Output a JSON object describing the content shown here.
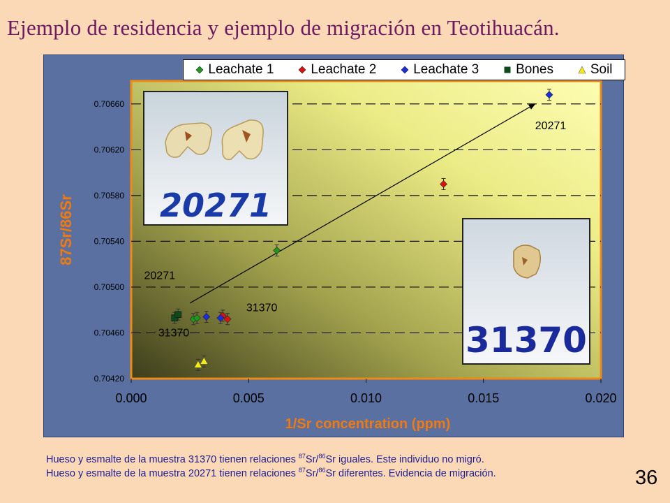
{
  "slide": {
    "title": "Ejemplo de residencia y ejemplo de migración en Teotihuacán.",
    "page_number": "36"
  },
  "footer": {
    "line1": {
      "before": "Hueso y esmalte de la muestra 31370 tienen relaciones ",
      "sup1": "87",
      "mid1": "Sr/",
      "sup2": "86",
      "after": "Sr iguales. Este individuo no migró."
    },
    "line2": {
      "before": "Hueso y esmalte de la muestra 20271 tienen relaciones ",
      "sup1": "87",
      "mid1": "Sr/",
      "sup2": "86",
      "after": "Sr diferentes. Evidencia de migración."
    }
  },
  "photos": {
    "left": {
      "label": "20271"
    },
    "right": {
      "label": "31370"
    }
  },
  "colors": {
    "leachate1": "#1e9a1e",
    "leachate2": "#e01010",
    "leachate3": "#1a2ee0",
    "bones": "#0f4a1a",
    "soil": "#f4ee10",
    "axis_title": "#f07a10"
  },
  "chart_data": {
    "type": "scatter",
    "xlabel": "1/Sr concentration (ppm)",
    "ylabel": "87Sr/86Sr",
    "xlim": [
      0.0,
      0.02
    ],
    "ylim": [
      0.7042,
      0.7068
    ],
    "x_ticks": [
      0.0,
      0.005,
      0.01,
      0.015,
      0.02
    ],
    "x_tick_labels": [
      "0.000",
      "0.005",
      "0.010",
      "0.015",
      "0.020"
    ],
    "y_ticks": [
      0.7042,
      0.7046,
      0.705,
      0.7054,
      0.7058,
      0.7062,
      0.7066
    ],
    "y_tick_labels": [
      "0.70420",
      "0.70460",
      "0.70500",
      "0.70540",
      "0.70580",
      "0.70620",
      "0.70660"
    ],
    "grid": "horizontal dashed",
    "legend_position": "top",
    "series": [
      {
        "name": "Leachate 1",
        "marker": "diamond",
        "color_key": "leachate1",
        "points": [
          [
            0.00265,
            0.70472
          ],
          [
            0.0028,
            0.70473
          ],
          [
            0.0062,
            0.70532
          ]
        ]
      },
      {
        "name": "Leachate 2",
        "marker": "diamond",
        "color_key": "leachate2",
        "points": [
          [
            0.0039,
            0.70475
          ],
          [
            0.0041,
            0.70472
          ],
          [
            0.0133,
            0.7059
          ]
        ]
      },
      {
        "name": "Leachate 3",
        "marker": "diamond",
        "color_key": "leachate3",
        "points": [
          [
            0.0032,
            0.70474
          ],
          [
            0.0038,
            0.70473
          ],
          [
            0.0178,
            0.70668
          ]
        ]
      },
      {
        "name": "Bones",
        "marker": "square",
        "color_key": "bones",
        "points": [
          [
            0.00185,
            0.70473
          ],
          [
            0.002,
            0.70476
          ]
        ]
      },
      {
        "name": "Soil",
        "marker": "triangle",
        "color_key": "soil",
        "points": [
          [
            0.00285,
            0.70432
          ],
          [
            0.0031,
            0.70435
          ]
        ]
      }
    ],
    "annotations": [
      {
        "text": "20271",
        "x": 0.0172,
        "y": 0.70638
      },
      {
        "text": "20271",
        "x": 0.00055,
        "y": 0.70507
      },
      {
        "text": "31370",
        "x": 0.0049,
        "y": 0.70479
      },
      {
        "text": "31370",
        "x": 0.00115,
        "y": 0.70457
      }
    ],
    "arrow": {
      "from": [
        0.0025,
        0.70486
      ],
      "to": [
        0.0172,
        0.7066
      ]
    }
  }
}
